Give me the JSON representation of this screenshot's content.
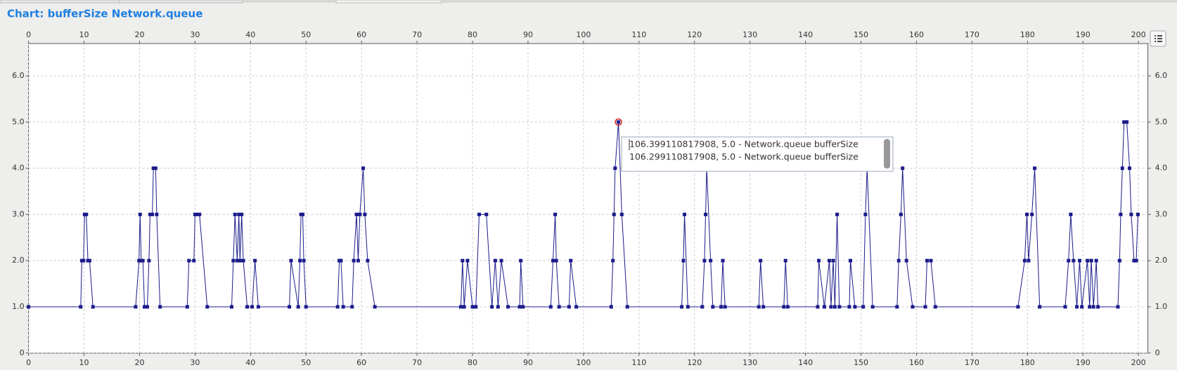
{
  "title": "Chart: bufferSize Network.queue",
  "chart_data": {
    "type": "line",
    "x": [
      0,
      9.4,
      9.6,
      9.9,
      10.1,
      10.4,
      10.7,
      11.0,
      11.6,
      19.3,
      19.9,
      20.1,
      20.3,
      20.6,
      20.9,
      21.4,
      21.7,
      21.9,
      22.3,
      22.5,
      22.9,
      23.1,
      23.7,
      28.6,
      28.9,
      29.8,
      30.0,
      30.5,
      30.8,
      32.2,
      36.6,
      36.9,
      37.2,
      37.6,
      37.9,
      38.1,
      38.4,
      38.7,
      39.4,
      40.3,
      40.8,
      41.4,
      47.0,
      47.3,
      48.6,
      48.9,
      49.1,
      49.4,
      49.6,
      50.0,
      55.7,
      56.0,
      56.3,
      56.7,
      58.3,
      58.6,
      59.1,
      59.4,
      59.7,
      60.3,
      60.6,
      61.1,
      62.4,
      77.9,
      78.2,
      78.5,
      79.1,
      80.0,
      80.6,
      81.2,
      82.5,
      83.5,
      84.1,
      84.6,
      85.2,
      86.4,
      88.5,
      88.7,
      89.1,
      94.1,
      94.5,
      94.9,
      95.1,
      95.6,
      97.4,
      97.7,
      98.7,
      105.0,
      105.3,
      105.5,
      105.7,
      106.3,
      106.9,
      107.9,
      117.7,
      118.0,
      118.2,
      118.8,
      121.4,
      121.8,
      122.0,
      122.2,
      122.9,
      123.3,
      124.8,
      125.1,
      125.5,
      131.6,
      131.9,
      132.4,
      136.1,
      136.4,
      136.8,
      142.2,
      142.4,
      143.4,
      144.3,
      144.6,
      145.0,
      145.3,
      145.7,
      146.1,
      147.9,
      148.1,
      148.9,
      150.4,
      150.8,
      151.1,
      152.1,
      156.5,
      156.8,
      157.2,
      157.5,
      158.2,
      159.3,
      161.6,
      161.9,
      162.6,
      163.4,
      178.3,
      179.5,
      179.9,
      180.2,
      180.8,
      181.3,
      182.2,
      186.8,
      187.4,
      187.8,
      188.3,
      188.9,
      189.4,
      189.8,
      190.8,
      191.2,
      191.5,
      191.9,
      192.4,
      192.7,
      196.3,
      196.6,
      196.8,
      197.1,
      197.4,
      197.9,
      198.4,
      198.7,
      199.2,
      199.6,
      199.9
    ],
    "values": [
      1,
      1,
      2,
      2,
      3,
      3,
      2,
      2,
      1,
      1,
      2,
      3,
      2,
      2,
      1,
      1,
      2,
      3,
      3,
      4,
      4,
      3,
      1,
      1,
      2,
      2,
      3,
      3,
      3,
      1,
      1,
      2,
      3,
      2,
      3,
      2,
      3,
      2,
      1,
      1,
      2,
      1,
      1,
      2,
      1,
      2,
      3,
      3,
      2,
      1,
      1,
      2,
      2,
      1,
      1,
      2,
      3,
      2,
      3,
      4,
      3,
      2,
      1,
      1,
      2,
      1,
      2,
      1,
      1,
      3,
      3,
      1,
      2,
      1,
      2,
      1,
      1,
      2,
      1,
      1,
      2,
      3,
      2,
      1,
      1,
      2,
      1,
      1,
      2,
      3,
      4,
      5,
      3,
      1,
      1,
      2,
      3,
      1,
      1,
      2,
      3,
      4,
      2,
      1,
      1,
      2,
      1,
      1,
      2,
      1,
      1,
      2,
      1,
      1,
      2,
      1,
      2,
      1,
      2,
      1,
      3,
      1,
      1,
      2,
      1,
      1,
      3,
      4,
      1,
      1,
      2,
      3,
      4,
      2,
      1,
      1,
      2,
      2,
      1,
      1,
      2,
      3,
      2,
      3,
      4,
      1,
      1,
      2,
      3,
      2,
      1,
      2,
      1,
      2,
      1,
      2,
      1,
      2,
      1,
      1,
      2,
      3,
      4,
      5,
      5,
      4,
      3,
      2,
      2,
      3
    ],
    "color": "#1c1c8c",
    "xlim": [
      0,
      201.7
    ],
    "ylim": [
      0,
      6.7
    ],
    "xticks": [
      0,
      10,
      20,
      30,
      40,
      50,
      60,
      70,
      80,
      90,
      100,
      110,
      120,
      130,
      140,
      150,
      160,
      170,
      180,
      190,
      200
    ],
    "yticks": [
      0,
      {
        "value": 1,
        "label": "1.0"
      },
      {
        "value": 2,
        "label": "2.0"
      },
      {
        "value": 3,
        "label": "3.0"
      },
      {
        "value": 4,
        "label": "4.0"
      },
      {
        "value": 5,
        "label": "5.0"
      },
      {
        "value": 6,
        "label": "6.0"
      }
    ],
    "grid": true
  },
  "tooltip": {
    "lines": [
      "106.399110817908, 5.0 - Network.queue bufferSize",
      "106.299110817908, 5.0 - Network.queue bufferSize"
    ]
  }
}
